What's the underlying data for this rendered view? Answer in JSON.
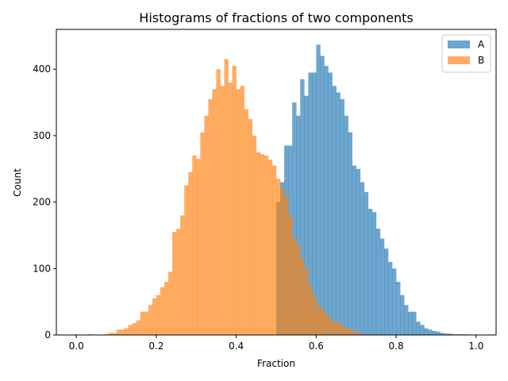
{
  "chart_data": {
    "type": "histogram",
    "title": "Histograms of fractions of two components",
    "xlabel": "Fraction",
    "ylabel": "Count",
    "xlim": [
      -0.05,
      1.05
    ],
    "ylim": [
      0,
      460
    ],
    "xticks": [
      0.0,
      0.2,
      0.4,
      0.6,
      0.8,
      1.0
    ],
    "xtick_labels": [
      "0.0",
      "0.2",
      "0.4",
      "0.6",
      "0.8",
      "1.0"
    ],
    "yticks": [
      0,
      100,
      200,
      300,
      400
    ],
    "ytick_labels": [
      "0",
      "100",
      "200",
      "300",
      "400"
    ],
    "bin_start": 0.0,
    "bin_width": 0.01,
    "legend": {
      "position": "top-right",
      "entries": [
        "A",
        "B"
      ]
    },
    "grid": false,
    "series": [
      {
        "name": "A",
        "color": "#1f77b4",
        "opacity": 0.65,
        "values": [
          0,
          0,
          0,
          0,
          0,
          0,
          0,
          0,
          0,
          0,
          0,
          0,
          0,
          0,
          0,
          0,
          0,
          0,
          0,
          0,
          0,
          0,
          0,
          0,
          0,
          0,
          0,
          0,
          0,
          0,
          0,
          0,
          0,
          0,
          0,
          0,
          0,
          0,
          0,
          0,
          0,
          0,
          0,
          0,
          0,
          0,
          0,
          0,
          0,
          0,
          200,
          230,
          285,
          285,
          350,
          330,
          385,
          360,
          395,
          395,
          437,
          420,
          405,
          395,
          375,
          365,
          355,
          330,
          305,
          255,
          250,
          230,
          215,
          190,
          185,
          160,
          145,
          130,
          110,
          100,
          80,
          60,
          45,
          35,
          35,
          20,
          15,
          10,
          8,
          6,
          5,
          3,
          2,
          2,
          1,
          1,
          1,
          1,
          0,
          0
        ]
      },
      {
        "name": "B",
        "color": "#ff7f0e",
        "opacity": 0.65,
        "values": [
          0,
          0,
          0,
          1,
          0,
          0,
          0,
          1,
          3,
          3,
          8,
          8,
          10,
          15,
          18,
          22,
          35,
          35,
          45,
          55,
          60,
          72,
          80,
          95,
          155,
          160,
          180,
          225,
          245,
          270,
          265,
          305,
          330,
          355,
          370,
          400,
          375,
          415,
          380,
          405,
          370,
          375,
          340,
          325,
          300,
          275,
          272,
          270,
          264,
          255,
          235,
          220,
          208,
          180,
          145,
          135,
          115,
          100,
          75,
          60,
          45,
          40,
          32,
          25,
          20,
          18,
          15,
          10,
          8,
          5,
          4,
          2,
          1,
          1,
          1,
          0,
          0,
          0,
          0,
          0,
          0,
          0,
          0,
          0,
          0,
          0,
          0,
          0,
          0,
          0,
          0,
          0,
          0,
          0,
          0,
          0,
          0,
          0,
          0,
          0
        ]
      }
    ]
  }
}
